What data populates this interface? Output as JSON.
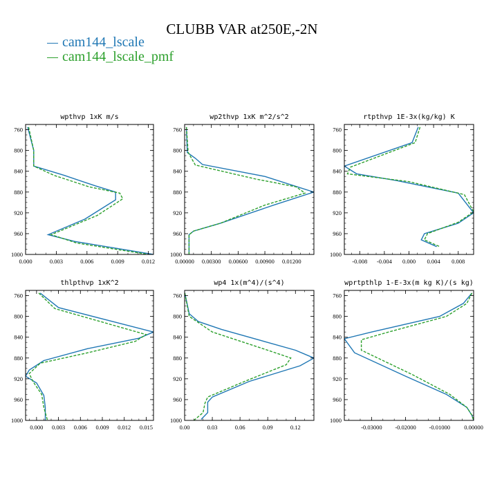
{
  "title": "CLUBB VAR at250E,-2N",
  "legend": [
    {
      "label": "cam144_lscale",
      "color": "#1f77b4"
    },
    {
      "label": "cam144_lscale_pmf",
      "color": "#2ca02c"
    }
  ],
  "chart_data": [
    {
      "type": "line",
      "title": "wpthvp  1xK m/s",
      "xlim": [
        0,
        0.0125
      ],
      "ylim": [
        1000,
        750
      ],
      "y_reversed": true,
      "xticks": [
        "0.000",
        "0.003",
        "0.006",
        "0.009",
        "0.012"
      ],
      "xtick_values": [
        0,
        0.003,
        0.006,
        0.009,
        0.012
      ],
      "yticks": [
        "760",
        "800",
        "840",
        "880",
        "920",
        "960",
        "1000"
      ],
      "ytick_values": [
        760,
        800,
        840,
        880,
        920,
        960,
        1000
      ],
      "series": [
        {
          "color": "#1f77b4",
          "style": "solid",
          "points": [
            [
              0.0002,
              755
            ],
            [
              0.0008,
              800
            ],
            [
              0.0008,
              830
            ],
            [
              0.0038,
              848
            ],
            [
              0.0068,
              868
            ],
            [
              0.0088,
              880
            ],
            [
              0.0088,
              895
            ],
            [
              0.0058,
              932
            ],
            [
              0.0022,
              962
            ],
            [
              0.0048,
              975
            ],
            [
              0.0125,
              1000
            ]
          ]
        },
        {
          "color": "#2ca02c",
          "style": "dashed",
          "points": [
            [
              0.0003,
              755
            ],
            [
              0.0008,
              800
            ],
            [
              0.0008,
              830
            ],
            [
              0.0028,
              848
            ],
            [
              0.0062,
              870
            ],
            [
              0.0092,
              882
            ],
            [
              0.0095,
              893
            ],
            [
              0.007,
              925
            ],
            [
              0.0025,
              962
            ],
            [
              0.005,
              978
            ],
            [
              0.012,
              1000
            ]
          ]
        }
      ]
    },
    {
      "type": "line",
      "title": "wp2thvp  1xK m^2/s^2",
      "xlim": [
        0,
        0.0145
      ],
      "ylim": [
        1000,
        750
      ],
      "y_reversed": true,
      "xticks": [
        "0.00000",
        "0.00300",
        "0.00600",
        "0.00900",
        "0.01200"
      ],
      "xtick_values": [
        0,
        0.003,
        0.006,
        0.009,
        0.012
      ],
      "yticks": [
        "760",
        "800",
        "840",
        "880",
        "920",
        "960",
        "1000"
      ],
      "ytick_values": [
        760,
        800,
        840,
        880,
        920,
        960,
        1000
      ],
      "series": [
        {
          "color": "#1f77b4",
          "style": "solid",
          "points": [
            [
              0.0002,
              755
            ],
            [
              0.0003,
              804
            ],
            [
              0.0012,
              815
            ],
            [
              0.002,
              827
            ],
            [
              0.009,
              850
            ],
            [
              0.0145,
              880
            ],
            [
              0.01,
              905
            ],
            [
              0.004,
              940
            ],
            [
              0.001,
              955
            ],
            [
              0.0005,
              962
            ],
            [
              0.0005,
              1000
            ]
          ]
        },
        {
          "color": "#2ca02c",
          "style": "dashed",
          "points": [
            [
              0.0002,
              755
            ],
            [
              0.0004,
              804
            ],
            [
              0.0012,
              828
            ],
            [
              0.008,
              855
            ],
            [
              0.0125,
              870
            ],
            [
              0.0135,
              882
            ],
            [
              0.009,
              905
            ],
            [
              0.004,
              940
            ],
            [
              0.001,
              955
            ],
            [
              0.0005,
              962
            ],
            [
              0.0005,
              1000
            ]
          ]
        }
      ]
    },
    {
      "type": "line",
      "title": "rtpthvp  1E-3x(kg/kg) K",
      "xlim": [
        -0.0105,
        0.0105
      ],
      "ylim": [
        1000,
        750
      ],
      "y_reversed": true,
      "xticks": [
        "-0.008",
        "-0.004",
        "0.000",
        "0.004",
        "0.008"
      ],
      "xtick_values": [
        -0.008,
        -0.004,
        0,
        0.004,
        0.008
      ],
      "yticks": [
        "760",
        "800",
        "840",
        "880",
        "920",
        "960",
        "1000"
      ],
      "ytick_values": [
        760,
        800,
        840,
        880,
        920,
        960,
        1000
      ],
      "series": [
        {
          "color": "#1f77b4",
          "style": "solid",
          "points": [
            [
              0.0015,
              755
            ],
            [
              0.0005,
              785
            ],
            [
              -0.0105,
              830
            ],
            [
              -0.0085,
              845
            ],
            [
              -0.002,
              858
            ],
            [
              0.008,
              882
            ],
            [
              0.0105,
              920
            ],
            [
              0.008,
              940
            ],
            [
              0.0025,
              960
            ],
            [
              0.002,
              972
            ],
            [
              0.0045,
              985
            ]
          ]
        },
        {
          "color": "#2ca02c",
          "style": "dashed",
          "points": [
            [
              0.0018,
              755
            ],
            [
              0.001,
              785
            ],
            [
              -0.0095,
              832
            ],
            [
              -0.01,
              845
            ],
            [
              0.0,
              860
            ],
            [
              0.009,
              885
            ],
            [
              0.0105,
              918
            ],
            [
              0.008,
              938
            ],
            [
              0.003,
              960
            ],
            [
              0.0025,
              972
            ],
            [
              0.005,
              985
            ]
          ]
        }
      ]
    },
    {
      "type": "line",
      "title": "thlpthvp  1xK^2",
      "xlim": [
        -0.0015,
        0.016
      ],
      "ylim": [
        1000,
        750
      ],
      "y_reversed": true,
      "xticks": [
        "0.000",
        "0.003",
        "0.006",
        "0.009",
        "0.012",
        "0.015"
      ],
      "xtick_values": [
        0,
        0.003,
        0.006,
        0.009,
        0.012,
        0.015
      ],
      "yticks": [
        "760",
        "800",
        "840",
        "880",
        "920",
        "960",
        "1000"
      ],
      "ytick_values": [
        760,
        800,
        840,
        880,
        920,
        960,
        1000
      ],
      "series": [
        {
          "color": "#1f77b4",
          "style": "solid",
          "points": [
            [
              0.0005,
              755
            ],
            [
              0.003,
              783
            ],
            [
              0.016,
              830
            ],
            [
              0.014,
              842
            ],
            [
              0.007,
              862
            ],
            [
              0.001,
              885
            ],
            [
              -0.001,
              903
            ],
            [
              -0.0015,
              915
            ],
            [
              0.0,
              928
            ],
            [
              0.001,
              952
            ],
            [
              0.0012,
              975
            ],
            [
              0.0012,
              1000
            ]
          ]
        },
        {
          "color": "#2ca02c",
          "style": "dashed",
          "points": [
            [
              0.0003,
              755
            ],
            [
              0.0025,
              785
            ],
            [
              0.015,
              835
            ],
            [
              0.0135,
              848
            ],
            [
              0.007,
              870
            ],
            [
              0.0005,
              890
            ],
            [
              -0.001,
              910
            ],
            [
              -0.0005,
              925
            ],
            [
              0.0007,
              950
            ],
            [
              0.001,
              975
            ],
            [
              0.0015,
              1000
            ]
          ]
        }
      ]
    },
    {
      "type": "line",
      "title": "wp4  1x(m^4)/(s^4)",
      "xlim": [
        0,
        0.14
      ],
      "ylim": [
        1000,
        750
      ],
      "y_reversed": true,
      "xticks": [
        "0.00",
        "0.03",
        "0.06",
        "0.09",
        "0.12"
      ],
      "xtick_values": [
        0,
        0.03,
        0.06,
        0.09,
        0.12
      ],
      "yticks": [
        "760",
        "800",
        "840",
        "880",
        "920",
        "960",
        "1000"
      ],
      "ytick_values": [
        760,
        800,
        840,
        880,
        920,
        960,
        1000
      ],
      "series": [
        {
          "color": "#1f77b4",
          "style": "solid",
          "points": [
            [
              0.0002,
              755
            ],
            [
              0.005,
              795
            ],
            [
              0.015,
              810
            ],
            [
              0.04,
              825
            ],
            [
              0.12,
              865
            ],
            [
              0.14,
              880
            ],
            [
              0.125,
              895
            ],
            [
              0.07,
              925
            ],
            [
              0.03,
              955
            ],
            [
              0.025,
              965
            ],
            [
              0.025,
              985
            ],
            [
              0.018,
              998
            ]
          ]
        },
        {
          "color": "#2ca02c",
          "style": "dashed",
          "points": [
            [
              0.0002,
              755
            ],
            [
              0.005,
              800
            ],
            [
              0.03,
              830
            ],
            [
              0.09,
              865
            ],
            [
              0.115,
              880
            ],
            [
              0.11,
              893
            ],
            [
              0.065,
              925
            ],
            [
              0.025,
              955
            ],
            [
              0.022,
              967
            ],
            [
              0.02,
              985
            ],
            [
              0.01,
              1000
            ]
          ]
        }
      ]
    },
    {
      "type": "line",
      "title": "wprtpthlp  1-E-3x(m kg K)/(s kg)",
      "xlim": [
        -0.038,
        0.0
      ],
      "ylim": [
        1000,
        750
      ],
      "y_reversed": true,
      "xticks": [
        "-0.03000",
        "-0.02000",
        "-0.01000",
        "0.00000"
      ],
      "xtick_values": [
        -0.03,
        -0.02,
        -0.01,
        0
      ],
      "yticks": [
        "760",
        "800",
        "840",
        "880",
        "920",
        "960",
        "1000"
      ],
      "ytick_values": [
        760,
        800,
        840,
        880,
        920,
        960,
        1000
      ],
      "series": [
        {
          "color": "#1f77b4",
          "style": "solid",
          "points": [
            [
              -0.0005,
              755
            ],
            [
              -0.003,
              775
            ],
            [
              -0.01,
              800
            ],
            [
              -0.03,
              830
            ],
            [
              -0.038,
              843
            ],
            [
              -0.035,
              870
            ],
            [
              -0.02,
              915
            ],
            [
              -0.008,
              950
            ],
            [
              -0.002,
              975
            ],
            [
              -0.0005,
              990
            ],
            [
              0.0,
              1000
            ]
          ]
        },
        {
          "color": "#2ca02c",
          "style": "dashed",
          "points": [
            [
              -0.0005,
              755
            ],
            [
              -0.002,
              775
            ],
            [
              -0.008,
              800
            ],
            [
              -0.025,
              830
            ],
            [
              -0.033,
              845
            ],
            [
              -0.033,
              865
            ],
            [
              -0.018,
              912
            ],
            [
              -0.007,
              950
            ],
            [
              -0.002,
              975
            ],
            [
              -0.0005,
              990
            ],
            [
              0.0,
              1000
            ]
          ]
        }
      ]
    }
  ]
}
